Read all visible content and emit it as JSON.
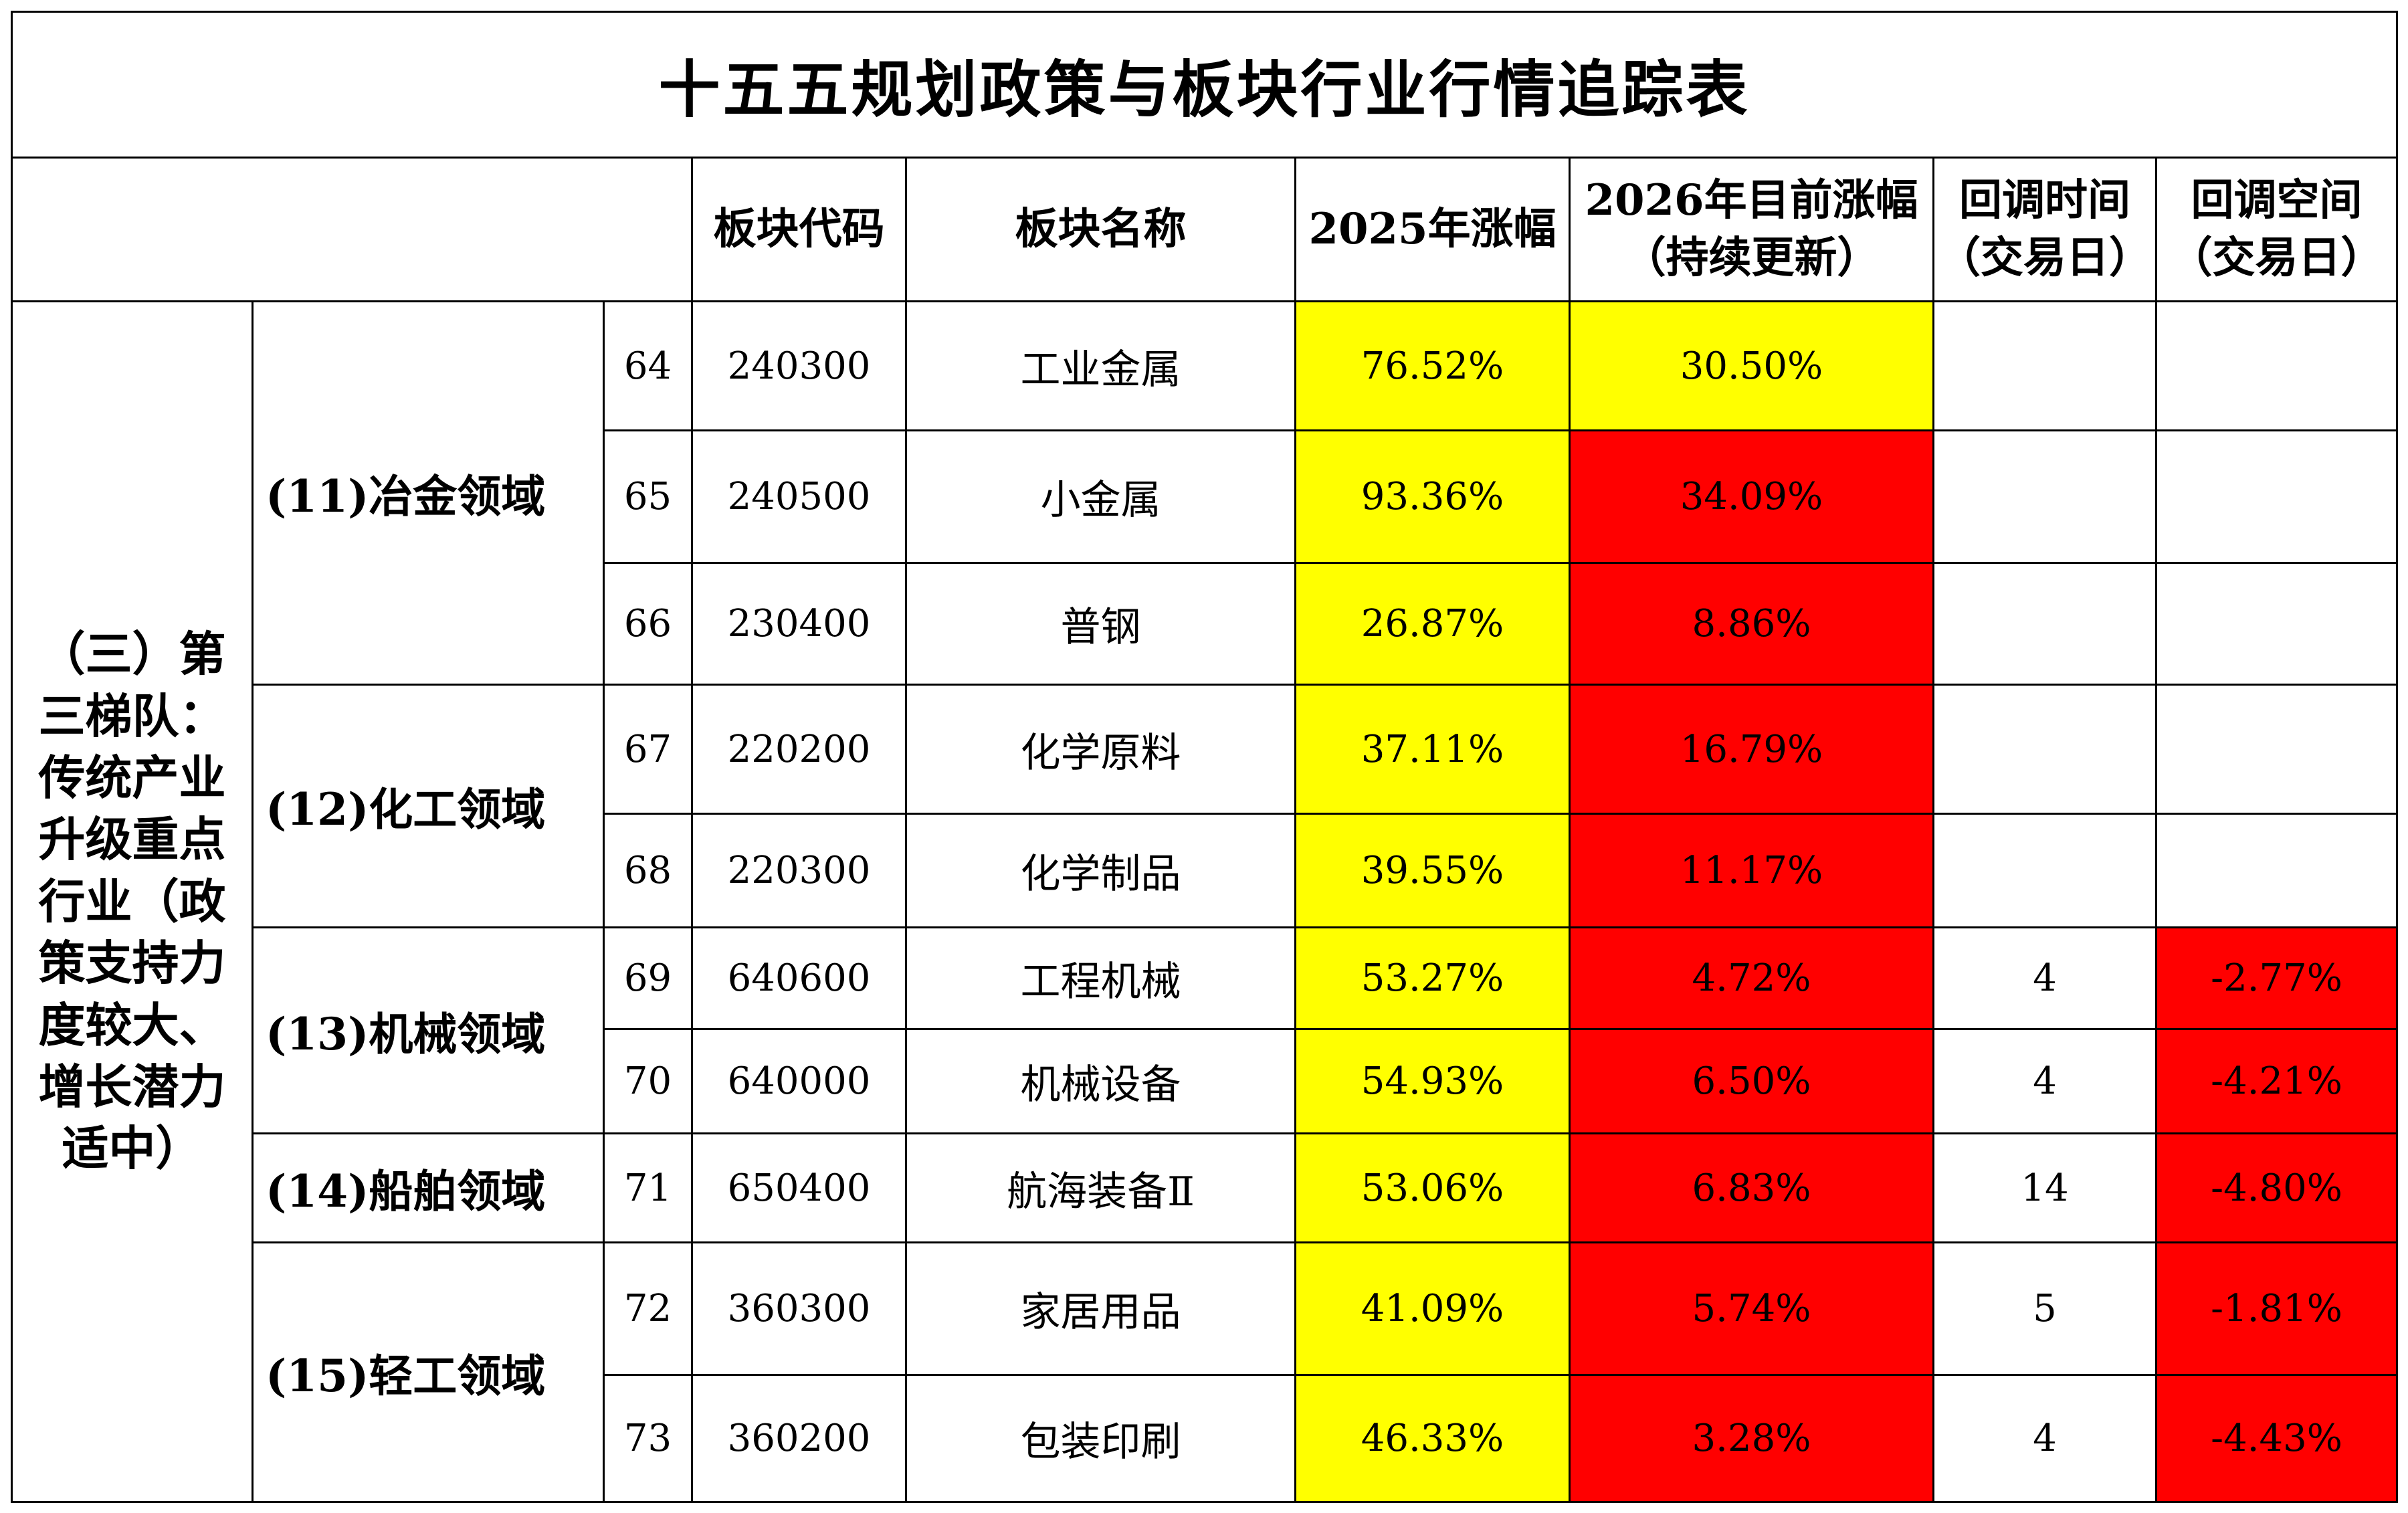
{
  "title": "十五五规划政策与板块行业行情追踪表",
  "headers": {
    "code": "板块代码",
    "name": "板块名称",
    "gain_2025": "2025年涨幅",
    "gain_2026_line1": "2026年目前涨幅",
    "gain_2026_line2": "（持续更新）",
    "pullback_time_line1": "回调时间",
    "pullback_time_line2": "（交易日）",
    "pullback_space_line1": "回调空间",
    "pullback_space_line2": "（交易日）"
  },
  "tier": "（三）第三梯队：传统产业升级重点行业（政策支持力度较大、增长潜力适中）",
  "domains": {
    "d11": "(11)冶金领域",
    "d12": "(12)化工领域",
    "d13": "(13)机械领域",
    "d14": "(14)船舶领域",
    "d15": "(15)轻工领域"
  },
  "rows": [
    {
      "idx": "64",
      "code": "240300",
      "name": "工业金属",
      "g2025": "76.52%",
      "g2026": "30.50%",
      "time": "",
      "space": ""
    },
    {
      "idx": "65",
      "code": "240500",
      "name": "小金属",
      "g2025": "93.36%",
      "g2026": "34.09%",
      "time": "",
      "space": ""
    },
    {
      "idx": "66",
      "code": "230400",
      "name": "普钢",
      "g2025": "26.87%",
      "g2026": "8.86%",
      "time": "",
      "space": ""
    },
    {
      "idx": "67",
      "code": "220200",
      "name": "化学原料",
      "g2025": "37.11%",
      "g2026": "16.79%",
      "time": "",
      "space": ""
    },
    {
      "idx": "68",
      "code": "220300",
      "name": "化学制品",
      "g2025": "39.55%",
      "g2026": "11.17%",
      "time": "",
      "space": ""
    },
    {
      "idx": "69",
      "code": "640600",
      "name": "工程机械",
      "g2025": "53.27%",
      "g2026": "4.72%",
      "time": "4",
      "space": "-2.77%"
    },
    {
      "idx": "70",
      "code": "640000",
      "name": "机械设备",
      "g2025": "54.93%",
      "g2026": "6.50%",
      "time": "4",
      "space": "-4.21%"
    },
    {
      "idx": "71",
      "code": "650400",
      "name": "航海装备Ⅱ",
      "g2025": "53.06%",
      "g2026": "6.83%",
      "time": "14",
      "space": "-4.80%"
    },
    {
      "idx": "72",
      "code": "360300",
      "name": "家居用品",
      "g2025": "41.09%",
      "g2026": "5.74%",
      "time": "5",
      "space": "-1.81%"
    },
    {
      "idx": "73",
      "code": "360200",
      "name": "包装印刷",
      "g2025": "46.33%",
      "g2026": "3.28%",
      "time": "4",
      "space": "-4.43%"
    }
  ],
  "colors": {
    "gain_2025_fill": "#ffff00",
    "row64_2026_fill": "#ffff00",
    "gain_2026_fill": "#ff0000",
    "pullback_space_fill": "#ff0000"
  }
}
